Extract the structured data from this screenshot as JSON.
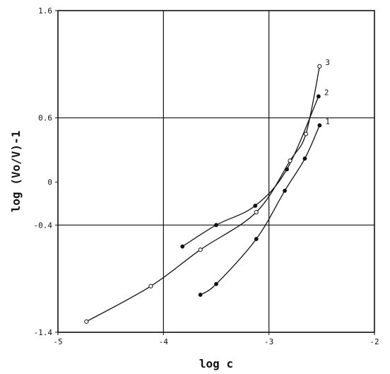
{
  "chart_data": {
    "type": "line",
    "title": "",
    "xlabel": "log c",
    "ylabel": "log (Vo/V)-1",
    "xlim": [
      -5,
      -2
    ],
    "ylim": [
      -1.4,
      1.6
    ],
    "grid": true,
    "x_ticks": [
      -5,
      -4,
      -3,
      -2
    ],
    "x_tick_labels": [
      "-5",
      "-4",
      "-3",
      "-2"
    ],
    "y_ticks": [
      -1.4,
      -0.4,
      0,
      0.6,
      1.6
    ],
    "y_tick_labels": [
      "-1.4",
      "-0.4",
      "0",
      "0.6",
      "1.6"
    ],
    "series": [
      {
        "name": "1",
        "marker": "filled",
        "x": [
          -3.65,
          -3.5,
          -3.12,
          -2.85,
          -2.66,
          -2.52
        ],
        "y": [
          -1.05,
          -0.95,
          -0.53,
          -0.08,
          0.22,
          0.53
        ]
      },
      {
        "name": "2",
        "marker": "filled",
        "x": [
          -3.82,
          -3.5,
          -3.13,
          -2.83,
          -2.53
        ],
        "y": [
          -0.6,
          -0.4,
          -0.22,
          0.12,
          0.8
        ]
      },
      {
        "name": "3",
        "marker": "open",
        "x": [
          -4.73,
          -4.12,
          -3.65,
          -3.12,
          -2.8,
          -2.65,
          -2.52
        ],
        "y": [
          -1.3,
          -0.97,
          -0.63,
          -0.28,
          0.2,
          0.45,
          1.08
        ]
      }
    ]
  }
}
